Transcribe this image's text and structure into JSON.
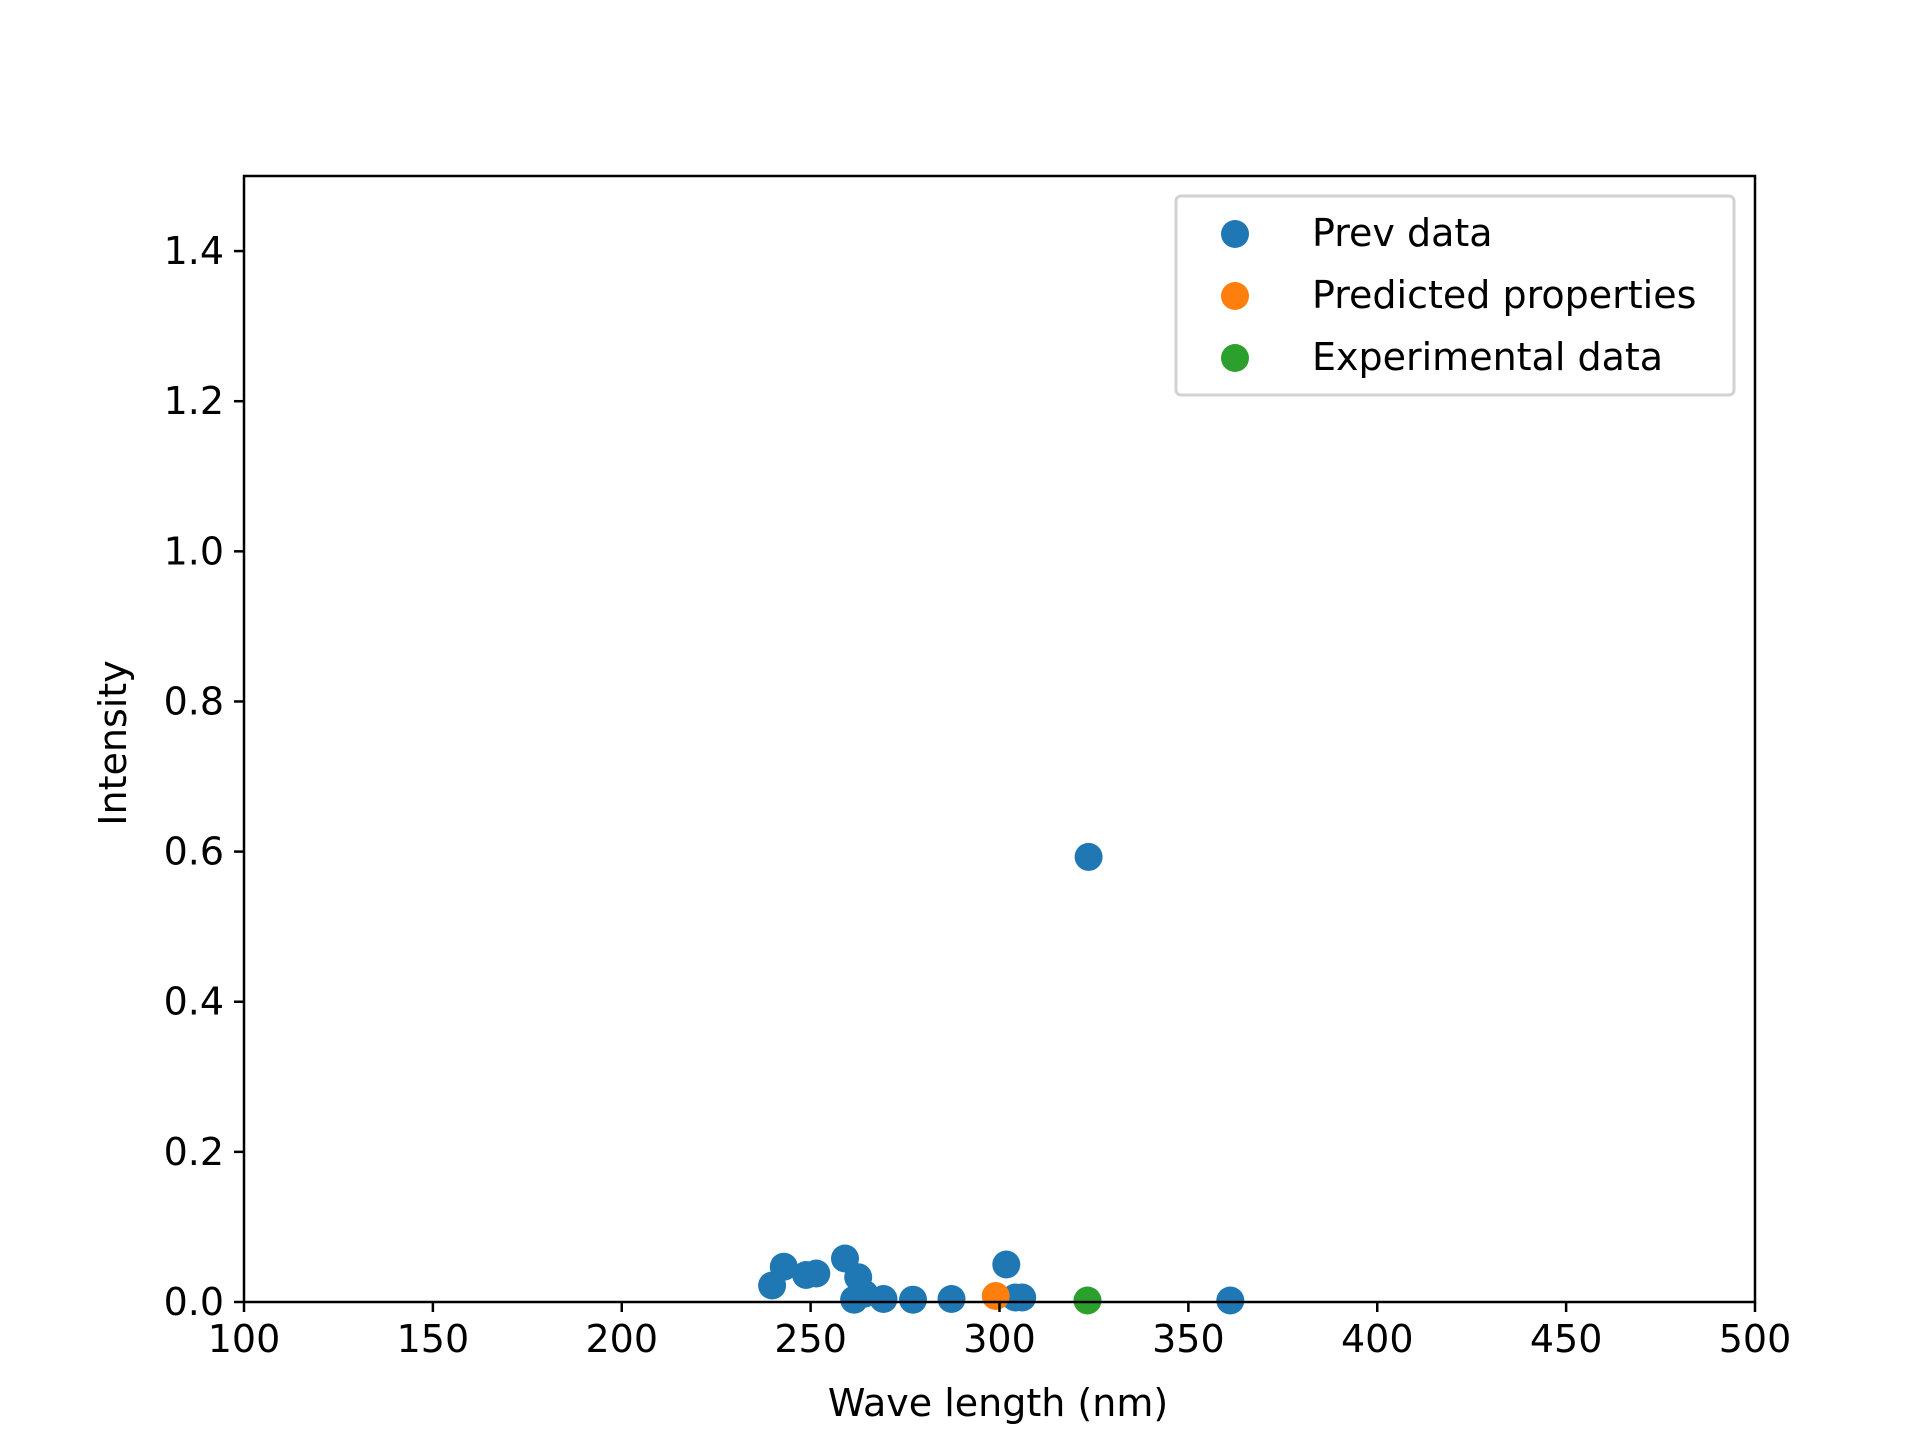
{
  "chart_data": {
    "type": "scatter",
    "title": "",
    "xlabel": "Wave length (nm)",
    "ylabel": "Intensity",
    "xlim": [
      100,
      500
    ],
    "ylim": [
      0,
      1.5
    ],
    "xticks": [
      100,
      150,
      200,
      250,
      300,
      350,
      400,
      450,
      500
    ],
    "yticks": [
      0.0,
      0.2,
      0.4,
      0.6,
      0.8,
      1.0,
      1.2,
      1.4
    ],
    "xtick_labels": [
      "100",
      "150",
      "200",
      "250",
      "300",
      "350",
      "400",
      "450",
      "500"
    ],
    "ytick_labels": [
      "0.0",
      "0.2",
      "0.4",
      "0.6",
      "0.8",
      "1.0",
      "1.2",
      "1.4"
    ],
    "grid": false,
    "legend_position": "top-right",
    "series": [
      {
        "name": "Prev data",
        "color": "#1f77b4",
        "points": [
          [
            239.8,
            0.022
          ],
          [
            242.9,
            0.047
          ],
          [
            248.8,
            0.036
          ],
          [
            251.5,
            0.038
          ],
          [
            259.1,
            0.058
          ],
          [
            262.6,
            0.033
          ],
          [
            264.2,
            0.011
          ],
          [
            261.5,
            0.003
          ],
          [
            269.3,
            0.004
          ],
          [
            277.1,
            0.003
          ],
          [
            287.3,
            0.004
          ],
          [
            301.8,
            0.05
          ],
          [
            304.2,
            0.006
          ],
          [
            306.0,
            0.006
          ],
          [
            323.6,
            0.593
          ],
          [
            361.1,
            0.002
          ]
        ]
      },
      {
        "name": "Predicted properties",
        "color": "#ff7f0e",
        "points": [
          [
            299.0,
            0.008
          ]
        ]
      },
      {
        "name": "Experimental data",
        "color": "#2ca02c",
        "points": [
          [
            323.3,
            0.002
          ]
        ]
      }
    ]
  }
}
